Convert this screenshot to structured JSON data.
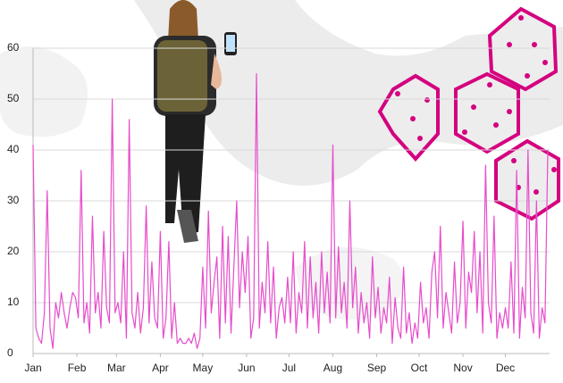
{
  "chart_data": {
    "type": "line",
    "x": [
      1,
      3,
      5,
      7,
      9,
      11,
      13,
      15,
      17,
      19,
      21,
      23,
      25,
      27,
      29,
      31,
      33,
      35,
      37,
      39,
      41,
      43,
      45,
      47,
      49,
      51,
      53,
      55,
      57,
      59,
      61,
      63,
      65,
      67,
      69,
      71,
      73,
      75,
      77,
      79,
      81,
      83,
      85,
      87,
      89,
      91,
      93,
      95,
      97,
      99,
      101,
      103,
      105,
      107,
      109,
      111,
      113,
      115,
      117,
      119,
      121,
      123,
      125,
      127,
      129,
      131,
      133,
      135,
      137,
      139,
      141,
      143,
      145,
      147,
      149,
      151,
      153,
      155,
      157,
      159,
      161,
      163,
      165,
      167,
      169,
      171,
      173,
      175,
      177,
      179,
      181,
      183,
      185,
      187,
      189,
      191,
      193,
      195,
      197,
      199,
      201,
      203,
      205,
      207,
      209,
      211,
      213,
      215,
      217,
      219,
      221,
      223,
      225,
      227,
      229,
      231,
      233,
      235,
      237,
      239,
      241,
      243,
      245,
      247,
      249,
      251,
      253,
      255,
      257,
      259,
      261,
      263,
      265,
      267,
      269,
      271,
      273,
      275,
      277,
      279,
      281,
      283,
      285,
      287,
      289,
      291,
      293,
      295,
      297,
      299,
      301,
      303,
      305,
      307,
      309,
      311,
      313,
      315,
      317,
      319,
      321,
      323,
      325,
      327,
      329,
      331,
      333,
      335,
      337,
      339,
      341,
      343,
      345,
      347,
      349,
      351,
      353,
      355,
      357,
      359,
      361,
      363,
      365
    ],
    "series": [
      {
        "color": "#e64ccb",
        "values": [
          41,
          5,
          3,
          2,
          8,
          32,
          5,
          1,
          10,
          7,
          12,
          8,
          5,
          9,
          12,
          11,
          7,
          36,
          6,
          10,
          4,
          27,
          8,
          12,
          5,
          24,
          9,
          6,
          50,
          8,
          10,
          6,
          20,
          3,
          46,
          8,
          5,
          12,
          4,
          9,
          29,
          6,
          18,
          7,
          5,
          24,
          3,
          7,
          22,
          3,
          10,
          2,
          3,
          2,
          2,
          3,
          2,
          4,
          1,
          3,
          17,
          5,
          28,
          8,
          14,
          19,
          3,
          25,
          6,
          23,
          4,
          17,
          30,
          9,
          20,
          12,
          23,
          3,
          7,
          55,
          5,
          14,
          8,
          22,
          6,
          17,
          3,
          9,
          11,
          6,
          15,
          6,
          20,
          4,
          12,
          8,
          22,
          5,
          19,
          7,
          14,
          4,
          20,
          8,
          16,
          6,
          41,
          7,
          21,
          8,
          14,
          5,
          30,
          9,
          17,
          4,
          12,
          6,
          10,
          3,
          19,
          7,
          13,
          4,
          9,
          6,
          15,
          2,
          11,
          5,
          3,
          17,
          4,
          8,
          2,
          6,
          3,
          14,
          6,
          9,
          3,
          16,
          20,
          7,
          25,
          5,
          12,
          8,
          4,
          18,
          6,
          10,
          26,
          5,
          16,
          12,
          24,
          8,
          20,
          4,
          37,
          10,
          6,
          27,
          3,
          8,
          5,
          9,
          5,
          18,
          4,
          36,
          3,
          13,
          7,
          40,
          8,
          4,
          30,
          3,
          9,
          6,
          40
        ]
      }
    ],
    "xlim": [
      1,
      365
    ],
    "xticks": [
      {
        "value": 1,
        "label": "Jan"
      },
      {
        "value": 32,
        "label": "Feb"
      },
      {
        "value": 60,
        "label": "Mar"
      },
      {
        "value": 91,
        "label": "Apr"
      },
      {
        "value": 121,
        "label": "May"
      },
      {
        "value": 152,
        "label": "Jun"
      },
      {
        "value": 182,
        "label": "Jul"
      },
      {
        "value": 213,
        "label": "Aug"
      },
      {
        "value": 244,
        "label": "Sep"
      },
      {
        "value": 274,
        "label": "Oct"
      },
      {
        "value": 305,
        "label": "Nov"
      },
      {
        "value": 335,
        "label": "Dec"
      }
    ],
    "ylim": [
      0,
      60
    ],
    "yticks": [
      0,
      10,
      20,
      30,
      40,
      50,
      60
    ],
    "grid": true
  }
}
